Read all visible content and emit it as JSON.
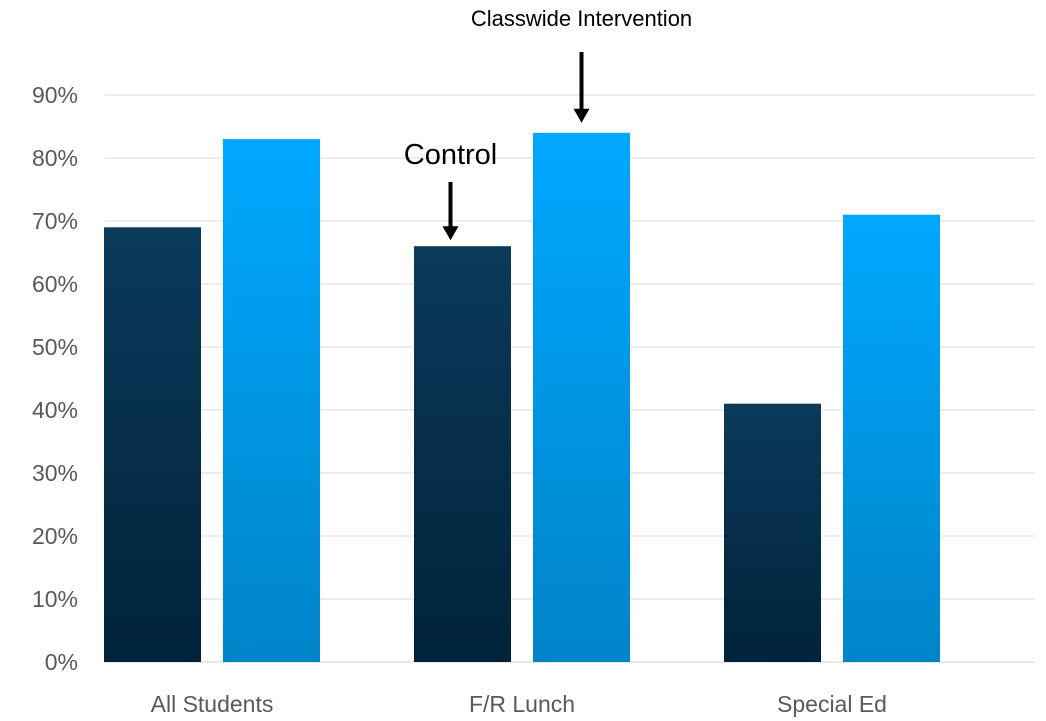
{
  "chart_data": {
    "type": "bar",
    "categories": [
      "All Students",
      "F/R Lunch",
      "Special Ed"
    ],
    "series": [
      {
        "values": [
          69,
          66,
          41
        ],
        "color_top": "#0b3a5a",
        "color_bottom": "#00233a"
      },
      {
        "values": [
          83,
          84,
          71
        ],
        "color_top": "#00a8ff",
        "color_bottom": "#0084c8"
      }
    ],
    "ylim": [
      0,
      90
    ],
    "yticks": [
      0,
      10,
      20,
      30,
      40,
      50,
      60,
      70,
      80,
      90
    ],
    "ytick_labels": [
      "0%",
      "10%",
      "20%",
      "30%",
      "40%",
      "50%",
      "60%",
      "70%",
      "80%",
      "90%"
    ],
    "grid": true,
    "annotations": [
      {
        "text": "Control",
        "category_index": 1,
        "series_index": 0
      },
      {
        "text": "Classwide Intervention",
        "category_index": 1,
        "series_index": 1
      }
    ]
  }
}
